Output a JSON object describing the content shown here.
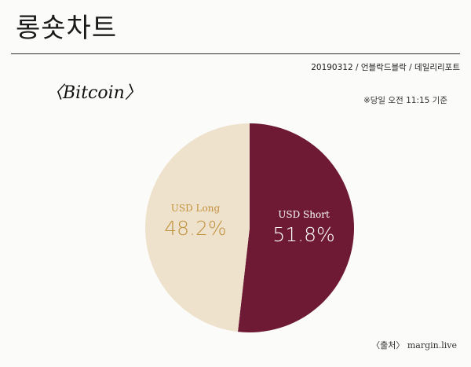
{
  "header": {
    "title": "롱숏차트",
    "meta": "20190312 / 언블락드블락 / 데일리리포트"
  },
  "subject": "〈Bitcoin〉",
  "as_of": "※당일 오전 11:15 기준",
  "source": "〈출처〉 margin.live",
  "colors": {
    "short": "#6e1a35",
    "long": "#efe2cc",
    "long_text": "#c0923d",
    "short_text": "#ffffff"
  },
  "chart_data": {
    "type": "pie",
    "title": "",
    "slices": [
      {
        "label": "USD Short",
        "value": 51.8,
        "display": "51.8%"
      },
      {
        "label": "USD Long",
        "value": 48.2,
        "display": "48.2%"
      }
    ]
  }
}
